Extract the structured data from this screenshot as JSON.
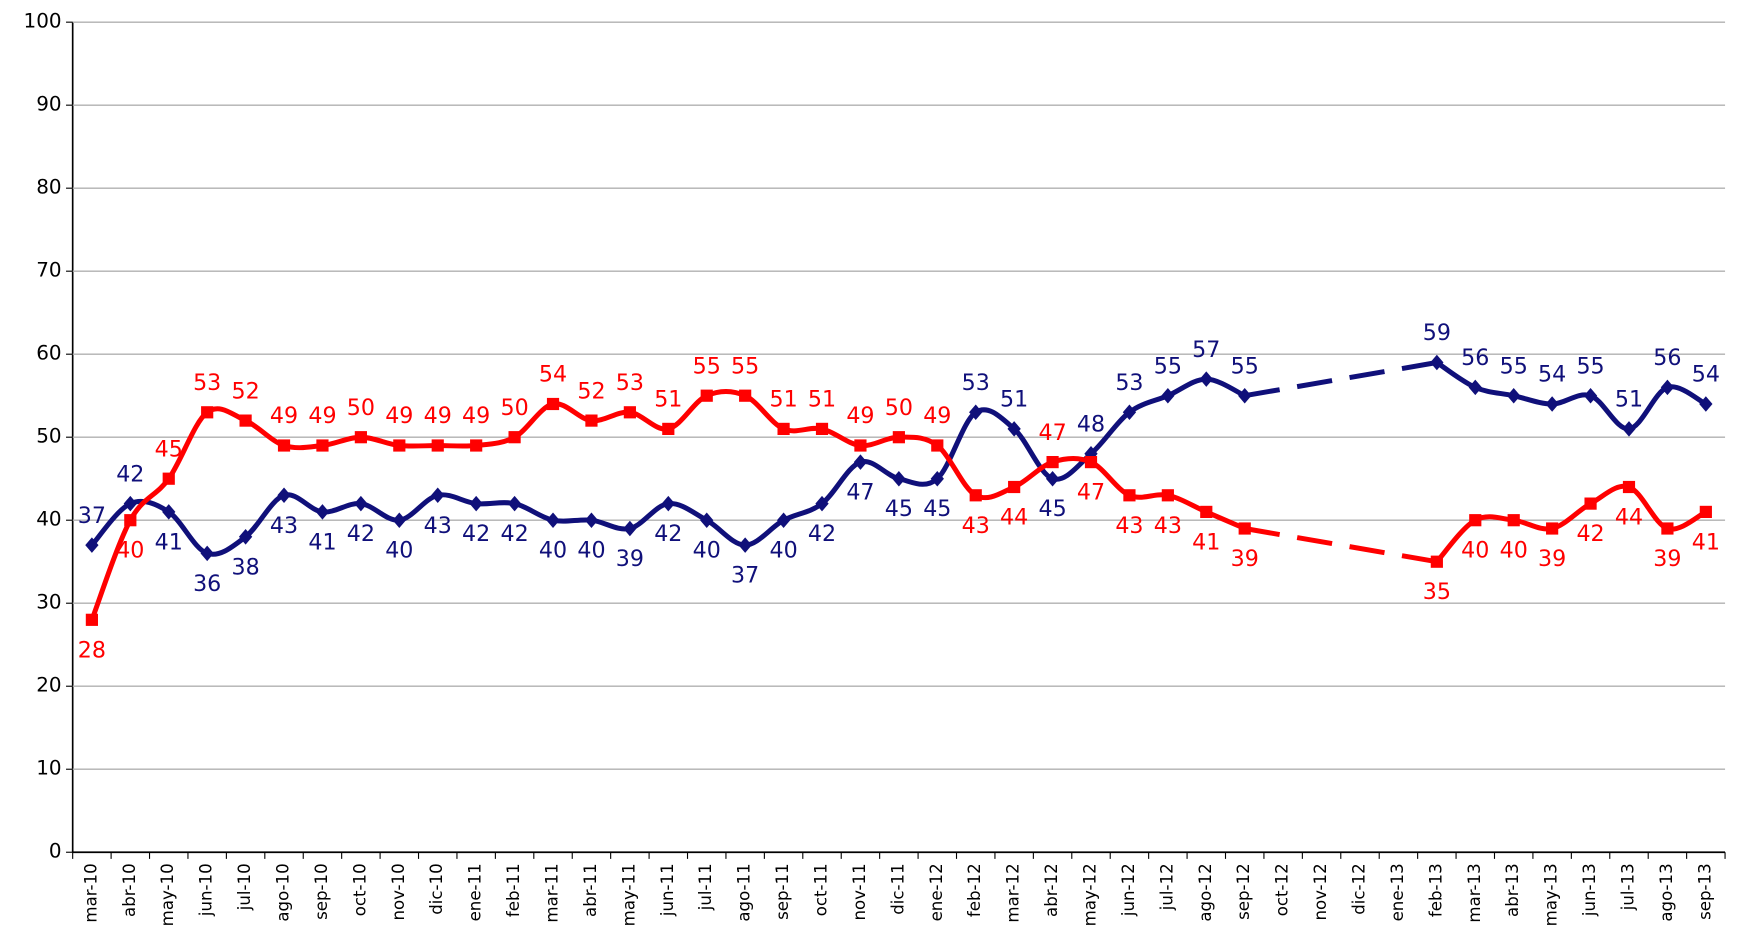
{
  "chart_data": {
    "type": "line",
    "categories": [
      "mar-10",
      "abr-10",
      "may-10",
      "jun-10",
      "jul-10",
      "ago-10",
      "sep-10",
      "oct-10",
      "nov-10",
      "dic-10",
      "ene-11",
      "feb-11",
      "mar-11",
      "abr-11",
      "may-11",
      "jun-11",
      "jul-11",
      "ago-11",
      "sep-11",
      "oct-11",
      "nov-11",
      "dic-11",
      "ene-12",
      "feb-12",
      "mar-12",
      "abr-12",
      "may-12",
      "jun-12",
      "jul-12",
      "ago-12",
      "sep-12",
      "oct-12",
      "nov-12",
      "dic-12",
      "ene-13",
      "feb-13",
      "mar-13",
      "abr-13",
      "may-13",
      "jun-13",
      "jul-13",
      "ago-13",
      "sep-13"
    ],
    "series": [
      {
        "color": "#10107a",
        "marker": "diamond",
        "values": [
          37,
          42,
          41,
          36,
          38,
          43,
          41,
          42,
          40,
          43,
          42,
          42,
          40,
          40,
          39,
          42,
          40,
          37,
          40,
          42,
          47,
          45,
          45,
          53,
          51,
          45,
          48,
          53,
          55,
          57,
          55,
          null,
          null,
          null,
          null,
          59,
          56,
          55,
          54,
          55,
          51,
          56,
          54
        ]
      },
      {
        "color": "#ff0000",
        "marker": "square",
        "values": [
          28,
          40,
          45,
          53,
          52,
          49,
          49,
          50,
          49,
          49,
          49,
          50,
          54,
          52,
          53,
          51,
          55,
          55,
          51,
          51,
          49,
          50,
          49,
          43,
          44,
          47,
          47,
          43,
          43,
          41,
          39,
          null,
          null,
          null,
          null,
          35,
          40,
          40,
          39,
          42,
          44,
          39,
          41
        ]
      }
    ],
    "ylim": [
      0,
      100
    ],
    "yticks": [
      0,
      10,
      20,
      30,
      40,
      50,
      60,
      70,
      80,
      90,
      100
    ],
    "grid": true
  }
}
